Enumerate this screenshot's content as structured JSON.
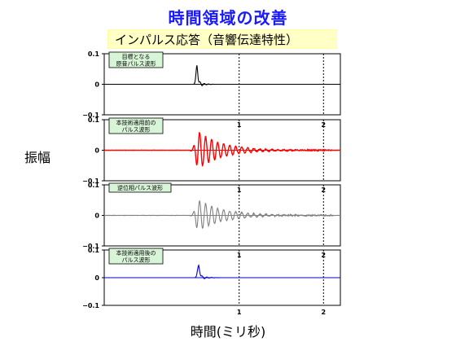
{
  "title": "時間領域の改善",
  "subtitle": "インパルス応答（音響伝達特性）",
  "ylabel": "振幅",
  "xlabel": "時間(ミリ秒)",
  "chart_data": [
    {
      "type": "line",
      "label_lines": [
        "目標となる",
        "原音パルス波形"
      ],
      "color": "#000000",
      "ylim": [
        -0.1,
        0.1
      ],
      "ytick_labels": [
        "0.1",
        "0",
        "−0.1"
      ],
      "xlim": [
        -0.6,
        2.2
      ],
      "xticks": [
        1,
        2
      ],
      "xtick_labels": [
        "",
        ""
      ],
      "signal": {
        "kind": "pulse",
        "center": 0.5,
        "amp": 0.062,
        "width": 0.012,
        "decay": 0.05,
        "freq": 20,
        "noise": 0.0
      }
    },
    {
      "type": "line",
      "label_lines": [
        "本技術適用前の",
        "パルス波形"
      ],
      "color": "#ff0000",
      "ylim": [
        -0.1,
        0.1
      ],
      "ytick_labels": [
        "0.1",
        "0",
        "−0.1"
      ],
      "xlim": [
        -0.6,
        2.2
      ],
      "xticks": [
        1,
        2
      ],
      "xtick_labels": [
        "1",
        "2"
      ],
      "signal": {
        "kind": "ring",
        "center": 0.52,
        "amp": 0.06,
        "width": 0.02,
        "decay": 0.28,
        "freq": 14,
        "noise": 0.003
      }
    },
    {
      "type": "line",
      "label_lines": [
        "逆位相パルス波形"
      ],
      "color": "#808080",
      "ylim": [
        -0.1,
        0.1
      ],
      "ytick_labels": [
        "0.1",
        "0",
        "−0.1"
      ],
      "xlim": [
        -0.6,
        2.2
      ],
      "xticks": [
        1,
        2
      ],
      "xtick_labels": [
        "1",
        "2"
      ],
      "signal": {
        "kind": "ring",
        "center": 0.52,
        "amp": 0.05,
        "width": 0.02,
        "decay": 0.3,
        "freq": 14,
        "noise": 0.004
      }
    },
    {
      "type": "line",
      "label_lines": [
        "本技術適用後の",
        "パルス波形"
      ],
      "color": "#0000cc",
      "ylim": [
        -0.1,
        0.1
      ],
      "ytick_labels": [
        "0.1",
        "0",
        "−0.1"
      ],
      "xlim": [
        -0.6,
        2.2
      ],
      "xticks": [
        1,
        2
      ],
      "xtick_labels": [
        "1",
        "2"
      ],
      "signal": {
        "kind": "pulse",
        "center": 0.52,
        "amp": 0.045,
        "width": 0.014,
        "decay": 0.06,
        "freq": 18,
        "noise": 0.0008
      }
    }
  ]
}
